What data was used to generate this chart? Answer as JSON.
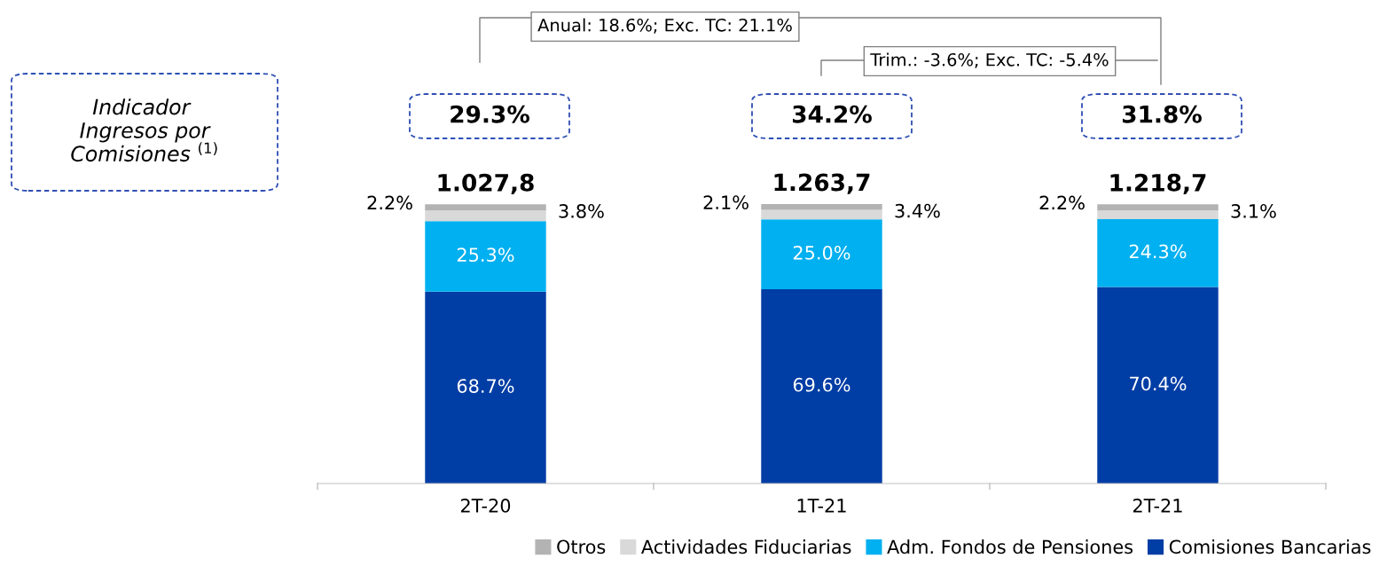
{
  "chart_data": {
    "type": "bar",
    "stacked": true,
    "categories": [
      "2T-20",
      "1T-21",
      "2T-21"
    ],
    "series": [
      {
        "name": "Comisiones Bancarias",
        "color": "#003da5",
        "values": [
          68.7,
          69.6,
          70.4
        ],
        "value_labels": [
          "68.7%",
          "69.6%",
          "70.4%"
        ]
      },
      {
        "name": "Adm. Fondos de Pensiones",
        "color": "#00b0f0",
        "values": [
          25.3,
          25.0,
          24.3
        ],
        "value_labels": [
          "25.3%",
          "25.0%",
          "24.3%"
        ]
      },
      {
        "name": "Actividades Fiduciarias",
        "color": "#d9d9d9",
        "values": [
          3.8,
          3.4,
          3.1
        ]
      },
      {
        "name": "Otros",
        "color": "#b3b3b3",
        "values": [
          2.2,
          2.1,
          2.2
        ]
      }
    ],
    "legend": "bottom",
    "grid": false,
    "annotations": [
      "Indicador Ingresos por Comisiones $^{(1)}$",
      "29.3%",
      "34.2%",
      "31.8%",
      "Anual: 18.6%; Exc. TC: 21.1%",
      "Trim.: -3.6%; Exc. TC: -5.4%",
      "1.027,8",
      "1.263,7",
      "1.218,7",
      "2.2%",
      "2.1%",
      "2.2%",
      "3.8%",
      "3.4%",
      "3.1%"
    ]
  }
}
